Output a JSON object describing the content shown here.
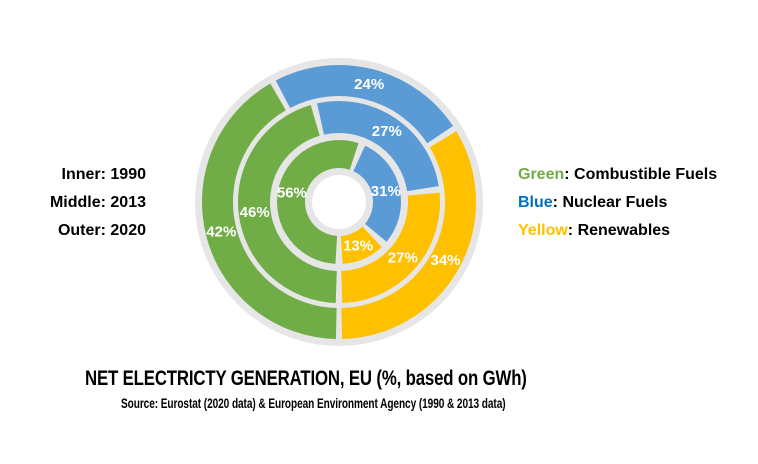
{
  "chart_data": {
    "type": "donut",
    "title": "NET ELECTRICTY GENERATION, EU (%, based on GWh)",
    "source_note": "Source: Eurostat (2020 data) & European Environment Agency (1990 & 2013 data)",
    "unit": "%",
    "categories": [
      "Combustible Fuels",
      "Nuclear Fuels",
      "Renewables"
    ],
    "colors": [
      "#70AD47",
      "#5B9BD5",
      "#FFC000"
    ],
    "rings": [
      {
        "position": "inner",
        "year": "1990",
        "values": [
          56,
          31,
          13
        ]
      },
      {
        "position": "middle",
        "year": "2013",
        "values": [
          46,
          27,
          27
        ]
      },
      {
        "position": "outer",
        "year": "2020",
        "values": [
          42,
          24,
          34
        ]
      }
    ],
    "layout": {
      "start_angle_deg": 180,
      "direction": "clockwise",
      "legend_position": "right",
      "background_disc_color": "#E7E6E6",
      "label_color": "#FFFFFF",
      "hole_color": "#FFFFFF"
    }
  },
  "ring_key": {
    "lines": [
      "Inner: 1990",
      "Middle: 2013",
      "Outer: 2020"
    ]
  },
  "legend": {
    "items": [
      {
        "word": "Green",
        "color": "#70AD47",
        "rest": ": Combustible Fuels"
      },
      {
        "word": "Blue",
        "color": "#0070C0",
        "rest": ": Nuclear Fuels"
      },
      {
        "word": "Yellow",
        "color": "#FFC000",
        "rest": ": Renewables"
      }
    ]
  }
}
